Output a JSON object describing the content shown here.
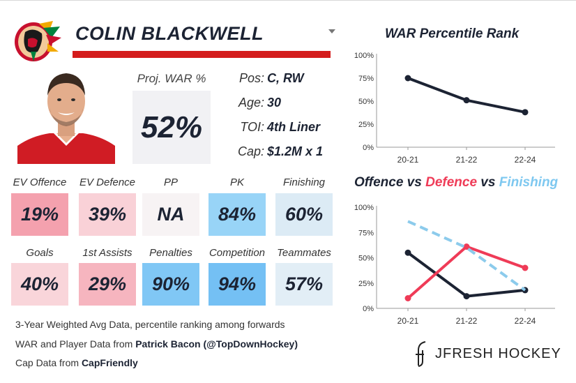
{
  "player": {
    "name": "COLIN BLACKWELL",
    "proj_war_label": "Proj. WAR %",
    "proj_war_value": "52%",
    "info": [
      {
        "key": "Pos:",
        "value": "C, RW"
      },
      {
        "key": "Age:",
        "value": "30"
      },
      {
        "key": "TOI:",
        "value": "4th Liner"
      },
      {
        "key": "Cap:",
        "value": "$1.2M x 1"
      }
    ]
  },
  "colors": {
    "accent_red": "#d41c1c",
    "navy": "#1c2333",
    "offence_red": "#ef3b57",
    "finishing_blue": "#7ec8f0"
  },
  "stats": [
    {
      "label": "EV Offence",
      "value": "19%",
      "color": "#f4a1ae"
    },
    {
      "label": "EV Defence",
      "value": "39%",
      "color": "#f9d1d7"
    },
    {
      "label": "PP",
      "value": "NA",
      "color": "#f7f3f4"
    },
    {
      "label": "PK",
      "value": "84%",
      "color": "#98d4f7"
    },
    {
      "label": "Finishing",
      "value": "60%",
      "color": "#dcebf5"
    },
    {
      "label": "Goals",
      "value": "40%",
      "color": "#f9d5da"
    },
    {
      "label": "1st Assists",
      "value": "29%",
      "color": "#f6b5bf"
    },
    {
      "label": "Penalties",
      "value": "90%",
      "color": "#80c7f5"
    },
    {
      "label": "Competition",
      "value": "94%",
      "color": "#74c0f4"
    },
    {
      "label": "Teammates",
      "value": "57%",
      "color": "#e2eef6"
    }
  ],
  "footer": {
    "line1": "3-Year Weighted Avg Data, percentile ranking among forwards",
    "line2_prefix": "WAR and Player Data from ",
    "line2_bold": "Patrick Bacon (@TopDownHockey)",
    "line3_prefix": "Cap Data from ",
    "line3_bold": "CapFriendly"
  },
  "brand": "JFRESH HOCKEY",
  "chart_data": [
    {
      "type": "line",
      "title": "WAR Percentile Rank",
      "categories": [
        "20-21",
        "21-22",
        "22-24"
      ],
      "y_ticks": [
        "0%",
        "25%",
        "50%",
        "75%",
        "100%"
      ],
      "ylim": [
        0,
        100
      ],
      "series": [
        {
          "name": "WAR",
          "values": [
            75,
            51,
            38
          ],
          "color": "#1c2333",
          "dashed": false
        }
      ]
    },
    {
      "type": "line",
      "title_parts": [
        {
          "text": "Offence",
          "color": "#1c2333"
        },
        {
          "text": " vs ",
          "color": "#1c2333"
        },
        {
          "text": "Defence",
          "color": "#ef3b57"
        },
        {
          "text": " vs ",
          "color": "#1c2333"
        },
        {
          "text": "Finishing",
          "color": "#7ec8f0"
        }
      ],
      "categories": [
        "20-21",
        "21-22",
        "22-24"
      ],
      "y_ticks": [
        "0%",
        "25%",
        "50%",
        "75%",
        "100%"
      ],
      "ylim": [
        0,
        100
      ],
      "series": [
        {
          "name": "Offence",
          "values": [
            55,
            12,
            18
          ],
          "color": "#1c2333",
          "dashed": false
        },
        {
          "name": "Defence",
          "values": [
            10,
            61,
            40
          ],
          "color": "#ef3b57",
          "dashed": false
        },
        {
          "name": "Finishing",
          "values": [
            86,
            60,
            18
          ],
          "color": "#8ccbec",
          "dashed": true
        }
      ]
    }
  ]
}
